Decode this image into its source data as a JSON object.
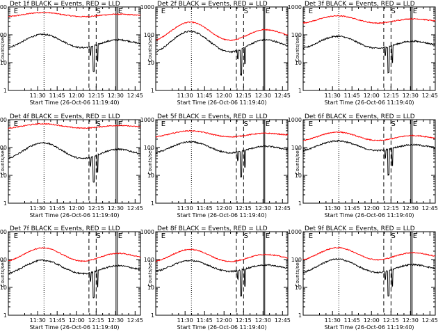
{
  "figure": {
    "ylabel": "Counts/sec",
    "xlabel": "Start Time (26-Oct-06 11:19:40)",
    "xtick_labels": [
      "11:30",
      "11:45",
      "12:00",
      "12:15",
      "12:30",
      "12:45"
    ],
    "ytick_labels": [
      "1",
      "10",
      "100",
      "1000"
    ],
    "marker_labels": [
      "E",
      "S",
      "E"
    ],
    "series_colors": {
      "events": "#000000",
      "lld": "#ff0000"
    }
  },
  "chart_data": [
    {
      "type": "line",
      "title": "Det 1f BLACK = Events, RED = LLD",
      "yscale": "log",
      "ylim": [
        1,
        1000
      ],
      "xlim": [
        0,
        1
      ]
    },
    {
      "type": "line",
      "title": "Det 2f BLACK = Events, RED = LLD",
      "yscale": "log",
      "ylim": [
        1,
        1000
      ],
      "xlim": [
        0,
        1
      ]
    },
    {
      "type": "line",
      "title": "Det 3f BLACK = Events, RED = LLD",
      "yscale": "log",
      "ylim": [
        1,
        1000
      ],
      "xlim": [
        0,
        1
      ]
    },
    {
      "type": "line",
      "title": "Det 4f BLACK = Events, RED = LLD",
      "yscale": "log",
      "ylim": [
        1,
        1000
      ],
      "xlim": [
        0,
        1
      ]
    },
    {
      "type": "line",
      "title": "Det 5f BLACK = Events, RED = LLD",
      "yscale": "log",
      "ylim": [
        1,
        1000
      ],
      "xlim": [
        0,
        1
      ]
    },
    {
      "type": "line",
      "title": "Det 6f BLACK = Events, RED = LLD",
      "yscale": "log",
      "ylim": [
        1,
        1000
      ],
      "xlim": [
        0,
        1
      ]
    },
    {
      "type": "line",
      "title": "Det 7f BLACK = Events, RED = LLD",
      "yscale": "log",
      "ylim": [
        1,
        1000
      ],
      "xlim": [
        0,
        1
      ]
    },
    {
      "type": "line",
      "title": "Det 8f BLACK = Events, RED = LLD",
      "yscale": "log",
      "ylim": [
        1,
        1000
      ],
      "xlim": [
        0,
        1
      ]
    },
    {
      "type": "line",
      "title": "Det 9f BLACK = Events, RED = LLD",
      "yscale": "log",
      "ylim": [
        1,
        1000
      ],
      "xlim": [
        0,
        1
      ]
    }
  ]
}
